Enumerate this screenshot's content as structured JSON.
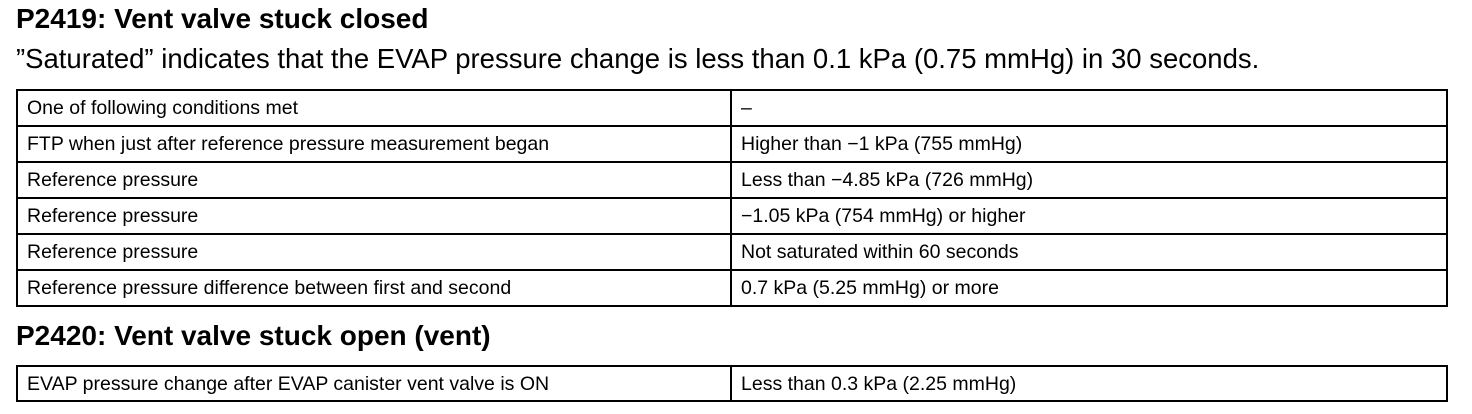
{
  "section1": {
    "title": "P2419: Vent valve stuck closed",
    "note": "”Saturated” indicates that the EVAP pressure change is less than 0.1 kPa (0.75 mmHg) in 30 seconds.",
    "rows": [
      {
        "condition": "One of following conditions met",
        "value": "–"
      },
      {
        "condition": "FTP when just after reference pressure measurement began",
        "value": "Higher than −1 kPa (755 mmHg)"
      },
      {
        "condition": "Reference pressure",
        "value": "Less than −4.85 kPa (726 mmHg)"
      },
      {
        "condition": "Reference pressure",
        "value": "−1.05 kPa (754 mmHg) or higher"
      },
      {
        "condition": "Reference pressure",
        "value": "Not saturated within 60 seconds"
      },
      {
        "condition": "Reference pressure difference between first and second",
        "value": "0.7 kPa (5.25 mmHg) or more"
      }
    ]
  },
  "section2": {
    "title": "P2420: Vent valve stuck open (vent)",
    "rows": [
      {
        "condition": "EVAP pressure change after EVAP canister vent valve is ON",
        "value": "Less than 0.3 kPa (2.25 mmHg)"
      }
    ]
  }
}
